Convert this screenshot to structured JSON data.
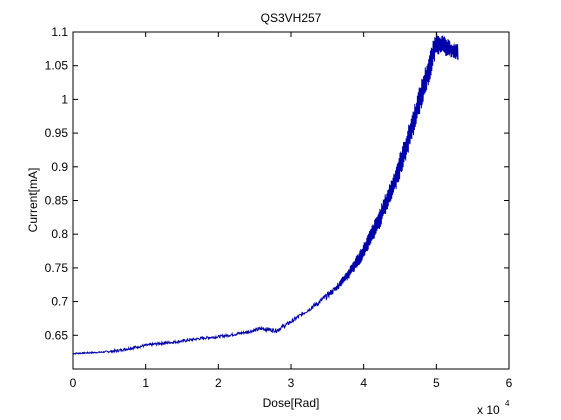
{
  "chart_data": {
    "type": "line",
    "title": "QS3VH257",
    "xlabel": "Dose[Rad]",
    "ylabel": "Current[mA]",
    "x_multiplier_label": "x 10",
    "x_multiplier_exponent": "4",
    "xlim": [
      0,
      60000
    ],
    "ylim": [
      0.6,
      1.1
    ],
    "xticks": [
      0,
      10000,
      20000,
      30000,
      40000,
      50000,
      60000
    ],
    "xtick_labels": [
      "0",
      "1",
      "2",
      "3",
      "4",
      "5",
      "6"
    ],
    "yticks": [
      0.65,
      0.7,
      0.75,
      0.8,
      0.85,
      0.9,
      0.95,
      1.0,
      1.05,
      1.1
    ],
    "ytick_labels": [
      "0.65",
      "0.7",
      "0.75",
      "0.8",
      "0.85",
      "0.9",
      "0.95",
      "1",
      "1.05",
      "1.1"
    ],
    "grid": false,
    "line_color": "#0000aa",
    "series": [
      {
        "x": [
          0,
          2000,
          4000,
          6000,
          8000,
          10000,
          12000,
          14000,
          16000,
          18000,
          20000,
          22000,
          24000,
          26000,
          28000,
          30000,
          32000,
          34000,
          36000,
          38000,
          40000,
          42000,
          44000,
          46000,
          48000,
          49000,
          50000,
          52000,
          53000
        ],
        "y": [
          0.623,
          0.624,
          0.625,
          0.627,
          0.631,
          0.635,
          0.638,
          0.64,
          0.643,
          0.646,
          0.648,
          0.651,
          0.655,
          0.66,
          0.657,
          0.67,
          0.685,
          0.7,
          0.718,
          0.742,
          0.775,
          0.818,
          0.87,
          0.935,
          1.01,
          1.045,
          1.085,
          1.074,
          1.07
        ],
        "fluctuation": [
          0.001,
          0.001,
          0.001,
          0.002,
          0.002,
          0.002,
          0.002,
          0.002,
          0.002,
          0.002,
          0.002,
          0.002,
          0.002,
          0.003,
          0.003,
          0.003,
          0.003,
          0.004,
          0.005,
          0.008,
          0.012,
          0.015,
          0.018,
          0.02,
          0.022,
          0.022,
          0.018,
          0.012,
          0.012
        ]
      }
    ]
  }
}
